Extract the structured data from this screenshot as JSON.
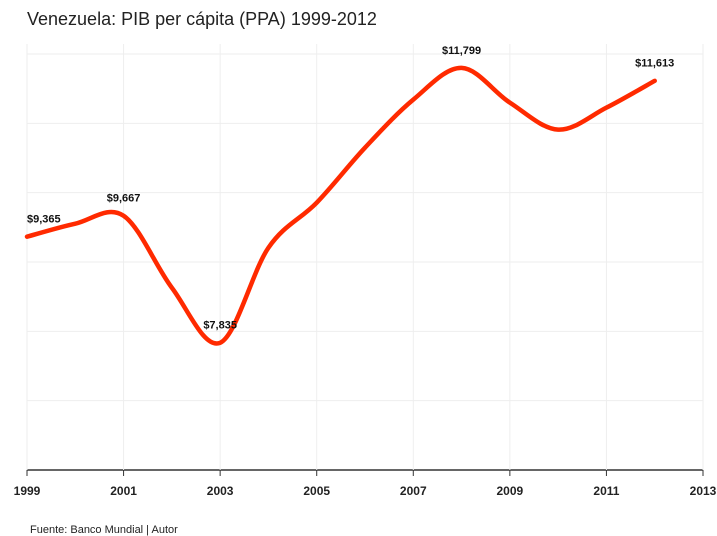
{
  "chart_data": {
    "type": "line",
    "title": "Venezuela: PIB per cápita (PPA) 1999-2012",
    "source": "Fuente:  Banco Mundial |  Autor",
    "x": [
      1999,
      2000,
      2001,
      2002,
      2003,
      2004,
      2005,
      2006,
      2007,
      2008,
      2009,
      2010,
      2011,
      2012
    ],
    "series": [
      {
        "name": "PIB per cápita",
        "color": "#ff2a00",
        "values": [
          9365,
          9553,
          9667,
          8629,
          7835,
          9206,
          9856,
          10649,
          11342,
          11799,
          11299,
          10909,
          11226,
          11613
        ],
        "value_labels": [
          "$9,365",
          null,
          "$9,667",
          null,
          "$7,835",
          null,
          null,
          null,
          null,
          "$11,799",
          null,
          null,
          null,
          "$11,613"
        ]
      }
    ],
    "xlim": [
      1999,
      2013
    ],
    "xticks": [
      1999,
      2001,
      2003,
      2005,
      2007,
      2009,
      2011,
      2013
    ],
    "ylim": [
      6000,
      12000
    ],
    "yticks": [
      6000,
      7000,
      8000,
      9000,
      10000,
      11000,
      12000
    ],
    "grid": true
  }
}
